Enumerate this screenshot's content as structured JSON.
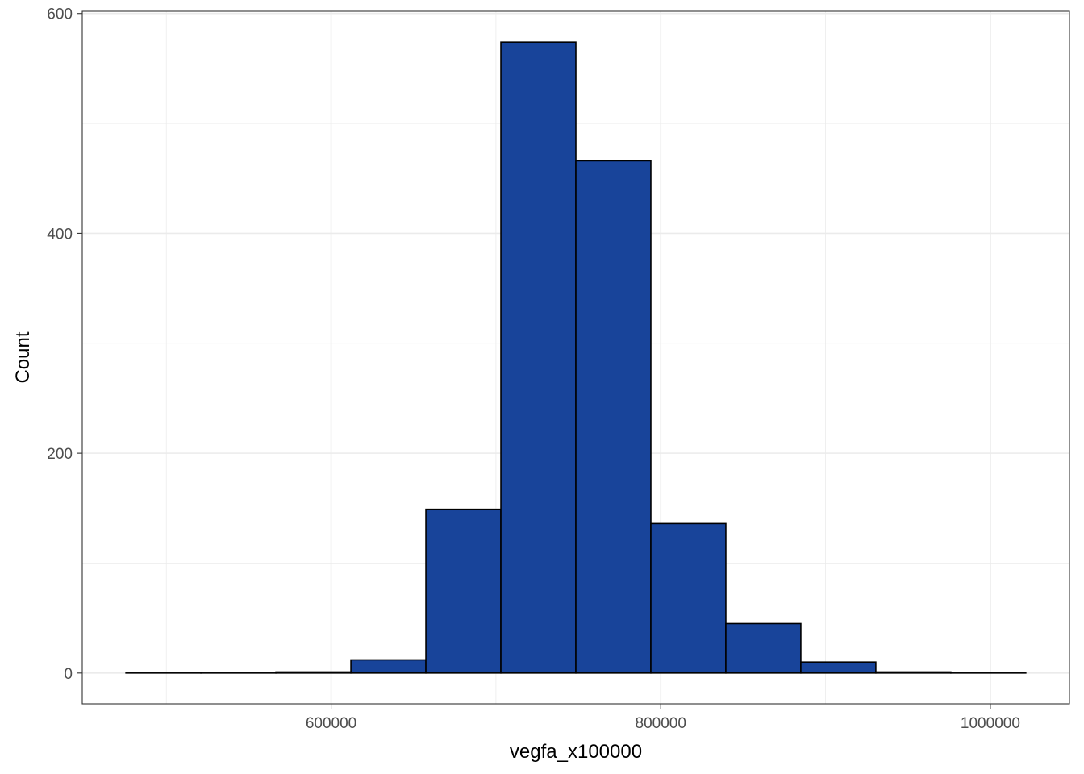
{
  "chart_data": {
    "type": "bar",
    "subtype": "histogram",
    "xlabel": "vegfa_x100000",
    "ylabel": "Count",
    "xlim": [
      449000,
      1048000
    ],
    "ylim": [
      -28,
      602
    ],
    "x_ticks": [
      600000,
      800000,
      1000000
    ],
    "x_tick_labels": [
      "600000",
      "800000",
      "1000000"
    ],
    "x_minor": [
      500000,
      700000,
      900000
    ],
    "y_ticks": [
      0,
      200,
      400,
      600
    ],
    "y_tick_labels": [
      "0",
      "200",
      "400",
      "600"
    ],
    "y_minor": [
      100,
      300,
      500
    ],
    "bin_width": 45500,
    "bins": [
      {
        "x0": 475500,
        "x1": 521000,
        "count": 0
      },
      {
        "x0": 521000,
        "x1": 566500,
        "count": 0
      },
      {
        "x0": 566500,
        "x1": 612000,
        "count": 1
      },
      {
        "x0": 612000,
        "x1": 657500,
        "count": 12
      },
      {
        "x0": 657500,
        "x1": 703000,
        "count": 149
      },
      {
        "x0": 703000,
        "x1": 748500,
        "count": 574
      },
      {
        "x0": 748500,
        "x1": 794000,
        "count": 466
      },
      {
        "x0": 794000,
        "x1": 839500,
        "count": 136
      },
      {
        "x0": 839500,
        "x1": 885000,
        "count": 45
      },
      {
        "x0": 885000,
        "x1": 930500,
        "count": 10
      },
      {
        "x0": 930500,
        "x1": 976000,
        "count": 1
      },
      {
        "x0": 976000,
        "x1": 1021500,
        "count": 0
      }
    ],
    "grid": true,
    "legend": "none",
    "colors": {
      "bar_fill": "#18449A",
      "bar_stroke": "#000000",
      "grid": "#EBEBEB",
      "panel_border": "#333333",
      "tick_label": "#4D4D4D",
      "axis_title": "#000000"
    }
  }
}
